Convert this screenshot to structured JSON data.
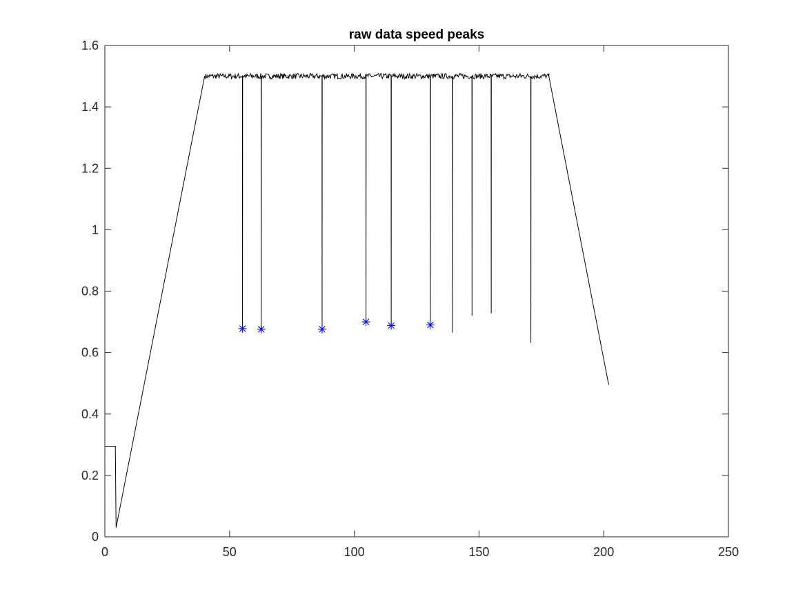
{
  "chart_data": {
    "type": "line",
    "title": "raw data speed peaks",
    "xlabel": "",
    "ylabel": "",
    "xlim": [
      0,
      250
    ],
    "ylim": [
      0,
      1.6
    ],
    "xticks": [
      0,
      50,
      100,
      150,
      200,
      250
    ],
    "xtick_labels": [
      "0",
      "50",
      "100",
      "150",
      "200",
      "250"
    ],
    "yticks": [
      0,
      0.2,
      0.4,
      0.6,
      0.8,
      1,
      1.2,
      1.4,
      1.6
    ],
    "ytick_labels": [
      "0",
      "0.2",
      "0.4",
      "0.6",
      "0.8",
      "1",
      "1.2",
      "1.4",
      "1.6"
    ],
    "grid": false,
    "legend": "none",
    "series": [
      {
        "kind": "line",
        "color": "#000000",
        "plateau": 1.5,
        "points": [
          [
            0,
            0.295
          ],
          [
            4.2,
            0.295
          ],
          [
            4.2,
            0.295
          ],
          [
            4.5,
            0.03
          ],
          [
            40,
            1.5
          ],
          [
            178,
            1.5
          ],
          [
            202,
            0.495
          ]
        ],
        "dips": [
          [
            55.2,
            0.678
          ],
          [
            62.7,
            0.676
          ],
          [
            87.1,
            0.676
          ],
          [
            104.7,
            0.7
          ],
          [
            114.8,
            0.688
          ],
          [
            130.5,
            0.69
          ],
          [
            139.4,
            0.665
          ],
          [
            147.2,
            0.72
          ],
          [
            154.9,
            0.728
          ],
          [
            170.8,
            0.632
          ]
        ]
      },
      {
        "kind": "markers",
        "marker": "*",
        "color": "#0000ff",
        "points": [
          [
            55.2,
            0.678
          ],
          [
            62.7,
            0.676
          ],
          [
            87.1,
            0.676
          ],
          [
            104.7,
            0.7
          ],
          [
            114.8,
            0.688
          ],
          [
            130.5,
            0.69
          ]
        ]
      }
    ]
  }
}
